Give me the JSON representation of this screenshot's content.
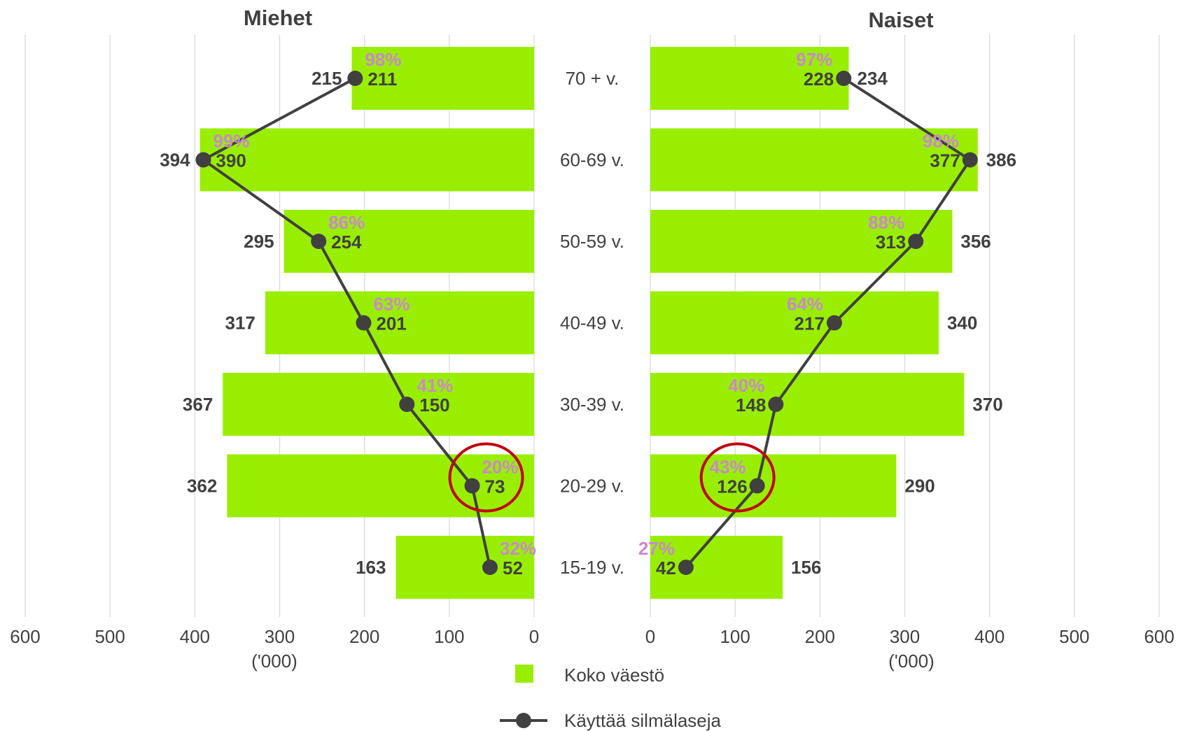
{
  "chart_data": {
    "type": "bar",
    "orientation": "horizontal-butterfly",
    "categories": [
      "70 + v.",
      "60-69 v.",
      "50-59 v.",
      "40-49 v.",
      "30-39 v.",
      "20-29 v.",
      "15-19 v."
    ],
    "panels": [
      {
        "title": "Miehet",
        "direction": "left",
        "xlim": [
          0,
          600
        ],
        "ticks": [
          "0",
          "100",
          "200",
          "300",
          "400",
          "500",
          "600"
        ],
        "unit_label": "('000)",
        "series": [
          {
            "name": "Koko väestö",
            "type": "bar",
            "color": "#99ee00",
            "values": [
              215,
              394,
              295,
              317,
              367,
              362,
              163
            ]
          },
          {
            "name": "Käyttää silmälaseja",
            "type": "line",
            "color": "#404040",
            "values": [
              211,
              390,
              254,
              201,
              150,
              73,
              52
            ]
          }
        ],
        "percent_labels": [
          "98%",
          "99%",
          "86%",
          "63%",
          "41%",
          "20%",
          "32%"
        ],
        "highlight_category": "20-29 v."
      },
      {
        "title": "Naiset",
        "direction": "right",
        "xlim": [
          0,
          600
        ],
        "ticks": [
          "0",
          "100",
          "200",
          "300",
          "400",
          "500",
          "600"
        ],
        "unit_label": "('000)",
        "series": [
          {
            "name": "Koko väestö",
            "type": "bar",
            "color": "#99ee00",
            "values": [
              234,
              386,
              356,
              340,
              370,
              290,
              156
            ]
          },
          {
            "name": "Käyttää silmälaseja",
            "type": "line",
            "color": "#404040",
            "values": [
              228,
              377,
              313,
              217,
              148,
              126,
              42
            ]
          }
        ],
        "percent_labels": [
          "97%",
          "98%",
          "88%",
          "64%",
          "40%",
          "43%",
          "27%"
        ],
        "highlight_category": "20-29 v."
      }
    ],
    "legend": {
      "placement": "bottom-center",
      "items": [
        {
          "label": "Koko väestö",
          "marker": "square",
          "color": "#99ee00"
        },
        {
          "label": "Käyttää silmälaseja",
          "marker": "line-dot",
          "color": "#404040"
        }
      ]
    },
    "grid": true,
    "highlight_color": "#c00010"
  }
}
